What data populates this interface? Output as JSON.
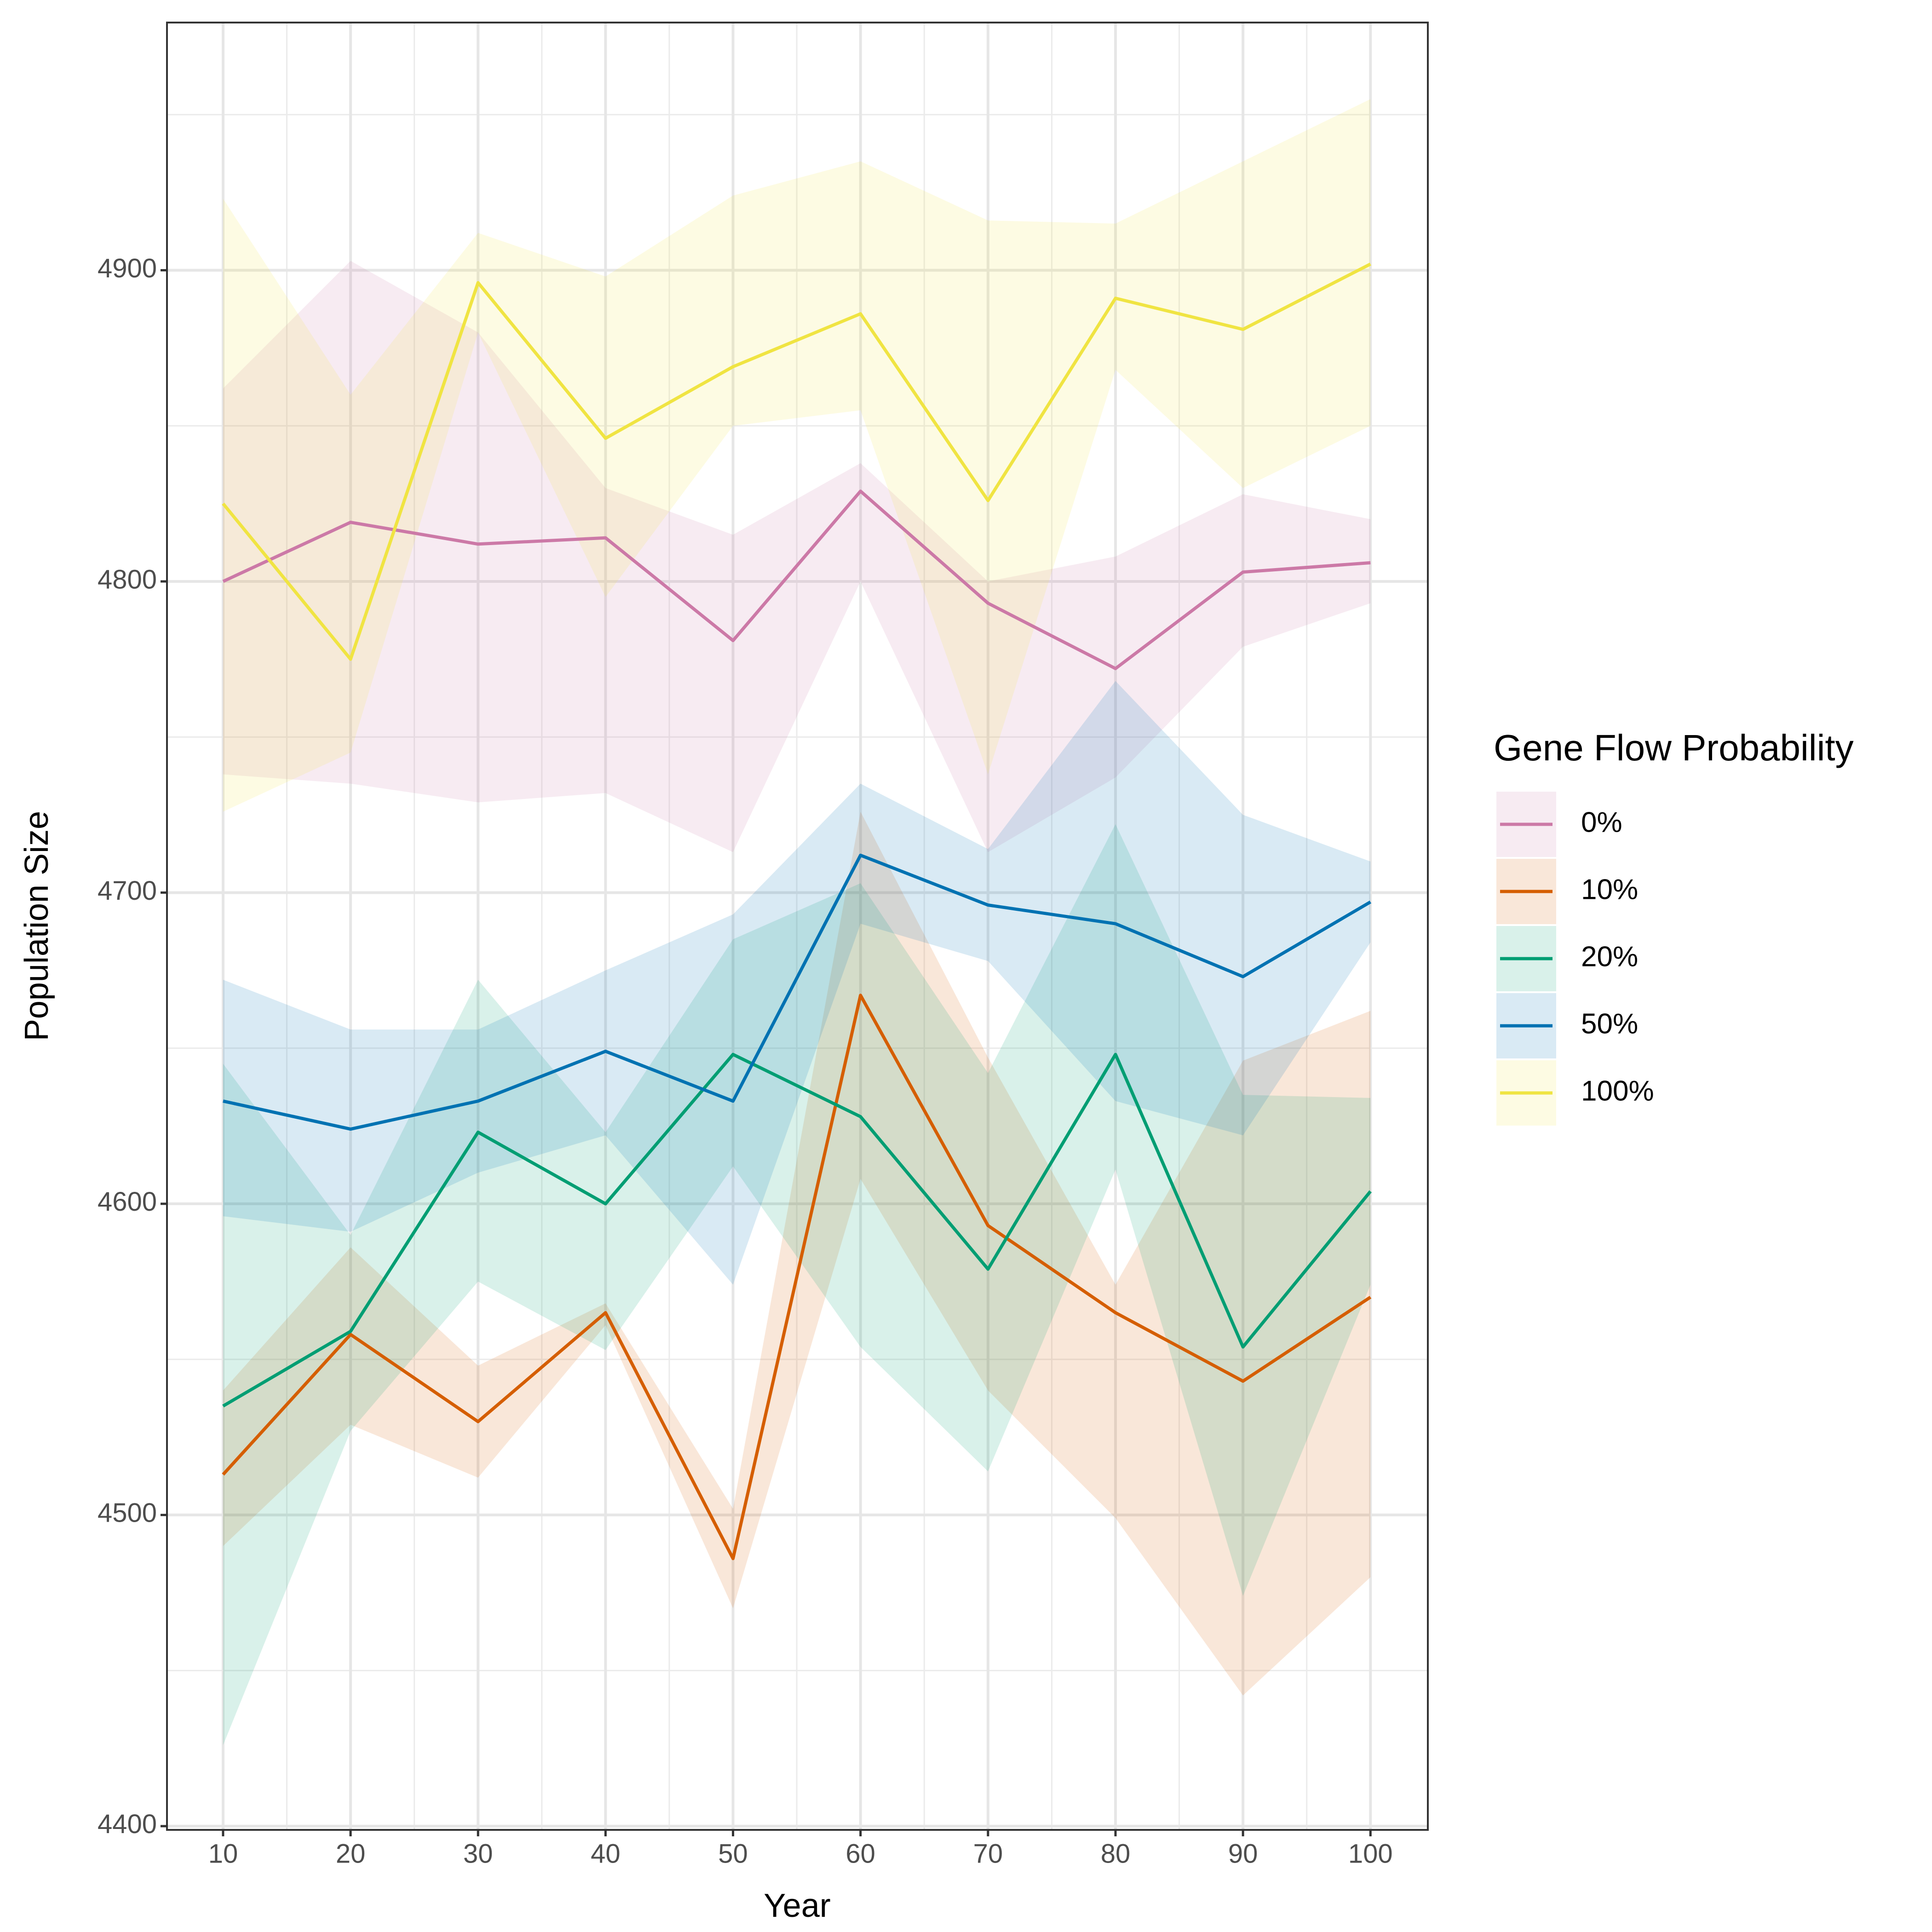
{
  "chart_data": {
    "type": "line",
    "x_label": "Year",
    "y_label": "Population Size",
    "legend_title": "Gene Flow Probability",
    "legend": "right",
    "x": [
      10,
      20,
      30,
      40,
      50,
      60,
      70,
      80,
      90,
      100
    ],
    "xlim": [
      5.6,
      104.5
    ],
    "xticks": [
      10,
      20,
      30,
      40,
      50,
      60,
      70,
      80,
      90,
      100
    ],
    "ylim": [
      4398.8,
      4979.6
    ],
    "yticks": [
      4400,
      4500,
      4600,
      4700,
      4800,
      4900
    ],
    "grid": true,
    "ribbon_opacity": 0.15,
    "series": [
      {
        "name": "0%",
        "color": "#CC79A7",
        "values": [
          4800,
          4819,
          4812,
          4814,
          4781,
          4829,
          4793,
          4772,
          4803,
          4806
        ],
        "lower": [
          4738,
          4735,
          4729,
          4732,
          4713,
          4800,
          4713,
          4737,
          4779,
          4793
        ],
        "upper": [
          4862,
          4903,
          4880,
          4830,
          4815,
          4838,
          4800,
          4808,
          4828,
          4820
        ]
      },
      {
        "name": "10%",
        "color": "#D55E00",
        "values": [
          4513,
          4558,
          4530,
          4565,
          4486,
          4667,
          4593,
          4565,
          4543,
          4570
        ],
        "lower": [
          4490,
          4529,
          4512,
          4561,
          4470,
          4608,
          4540,
          4499,
          4442,
          4480
        ],
        "upper": [
          4540,
          4586,
          4548,
          4568,
          4502,
          4726,
          4647,
          4574,
          4646,
          4662
        ]
      },
      {
        "name": "20%",
        "color": "#009E73",
        "values": [
          4535,
          4559,
          4623,
          4600,
          4648,
          4628,
          4579,
          4648,
          4554,
          4604
        ],
        "lower": [
          4426,
          4527,
          4575,
          4553,
          4612,
          4554,
          4514,
          4611,
          4474,
          4574
        ],
        "upper": [
          4645,
          4590,
          4672,
          4623,
          4685,
          4703,
          4642,
          4722,
          4635,
          4634
        ]
      },
      {
        "name": "50%",
        "color": "#0072B2",
        "values": [
          4633,
          4624,
          4633,
          4649,
          4633,
          4712,
          4696,
          4690,
          4673,
          4697
        ],
        "lower": [
          4596,
          4591,
          4610,
          4622,
          4574,
          4690,
          4678,
          4633,
          4622,
          4684
        ],
        "upper": [
          4672,
          4656,
          4656,
          4675,
          4693,
          4735,
          4714,
          4768,
          4725,
          4710
        ]
      },
      {
        "name": "100%",
        "color": "#F0E442",
        "values": [
          4825,
          4775,
          4896,
          4846,
          4869,
          4886,
          4826,
          4891,
          4881,
          4902
        ],
        "lower": [
          4726,
          4745,
          4880,
          4795,
          4850,
          4855,
          4738,
          4868,
          4830,
          4850
        ],
        "upper": [
          4923,
          4860,
          4912,
          4898,
          4924,
          4935,
          4916,
          4915,
          4935,
          4955
        ]
      }
    ]
  }
}
